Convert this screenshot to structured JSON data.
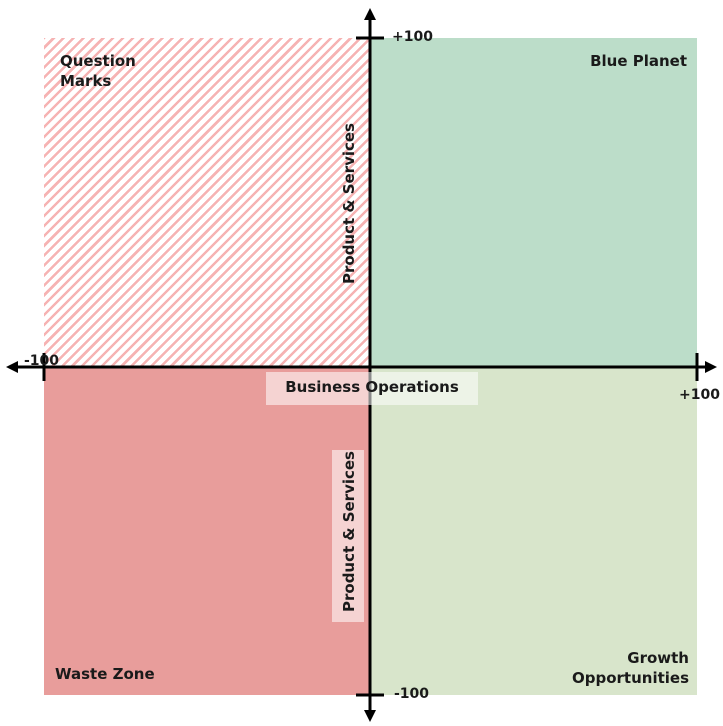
{
  "quadrants": {
    "top_left": {
      "label": "Question Marks",
      "color": "#f6b3b3",
      "pattern": "diagonal-stripes"
    },
    "top_right": {
      "label": "Blue Planet",
      "color": "#bcddc9"
    },
    "bottom_left": {
      "label": "Waste Zone",
      "color": "#e89d9b"
    },
    "bottom_right": {
      "label": "Growth Opportunities",
      "color": "#d8e5cb"
    }
  },
  "axes": {
    "x_label": "Business Operations",
    "y_label_upper": "Product & Services",
    "y_label_lower": "Product & Services",
    "x_min_label": "-100",
    "x_max_label": "+100",
    "y_min_label": "-100",
    "y_max_label": "+100"
  }
}
